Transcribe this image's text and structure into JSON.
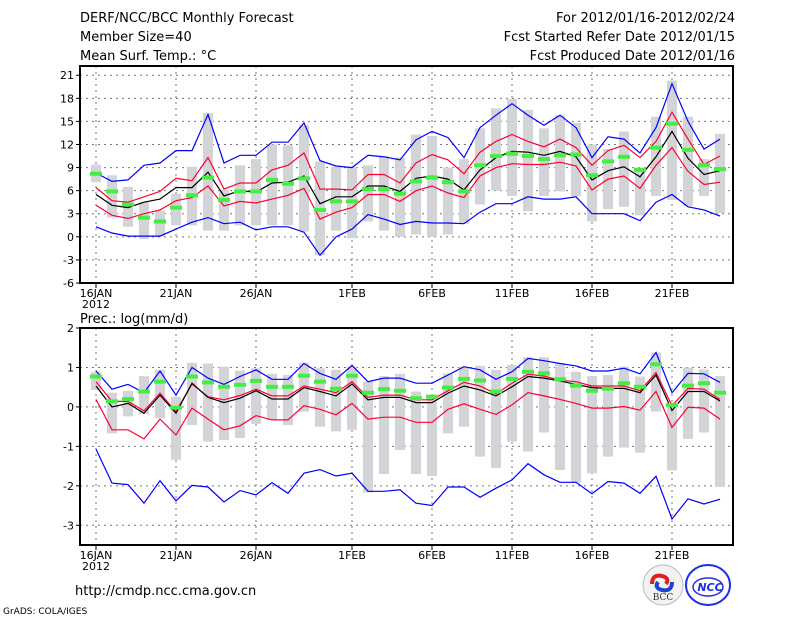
{
  "header": {
    "title": "DERF/NCC/BCC Monthly Forecast",
    "member_size": "Member Size=40",
    "variable": "Mean Surf. Temp.: °C",
    "period": "For 2012/01/16-2012/02/24",
    "refer_date": "Fcst Started Refer Date 2012/01/15",
    "produced_date": "Fcst Produced Date 2012/01/16"
  },
  "footer": {
    "url": "http://cmdp.ncc.cma.gov.cn",
    "credit": "GrADS: COLA/IGES",
    "logos": [
      "BCC",
      "NCC"
    ]
  },
  "colors": {
    "max_min": "#0000ff",
    "spread": "#ff0033",
    "mean": "#000000",
    "climate": "#44ee44",
    "range_bar": "#d3d4d8",
    "grid": "#777777"
  },
  "chart_data": [
    {
      "type": "line",
      "title": "Mean Surf. Temp.: °C",
      "xlabel": "",
      "ylabel": "°C",
      "x_start": "2012-01-16",
      "days": 40,
      "x_ticks": [
        {
          "day": 0,
          "label": "16JAN",
          "sub": "2012"
        },
        {
          "day": 5,
          "label": "21JAN"
        },
        {
          "day": 10,
          "label": "26JAN"
        },
        {
          "day": 16,
          "label": "1FEB"
        },
        {
          "day": 21,
          "label": "6FEB"
        },
        {
          "day": 26,
          "label": "11FEB"
        },
        {
          "day": 31,
          "label": "16FEB"
        },
        {
          "day": 36,
          "label": "21FEB"
        }
      ],
      "y_ticks": [
        "21",
        "18",
        "15",
        "12",
        "9",
        "6",
        "3",
        "0",
        "-3",
        "-6"
      ],
      "ylim": [
        -6,
        22.2
      ],
      "grid": true,
      "series": [
        {
          "name": "ensemble max",
          "color": "blue",
          "values": [
            8.3,
            7.2,
            7.4,
            9.3,
            9.6,
            11.2,
            11.2,
            15.9,
            9.6,
            10.6,
            10.6,
            12.3,
            12.3,
            14.8,
            9.9,
            9.2,
            9.0,
            10.6,
            10.4,
            10.0,
            12.6,
            13.7,
            12.9,
            10.3,
            14.2,
            15.8,
            17.3,
            15.8,
            14.5,
            15.8,
            14.2,
            10.3,
            13.0,
            12.7,
            10.9,
            14.2,
            19.9,
            15.0,
            11.4,
            12.7
          ]
        },
        {
          "name": "ensemble upper",
          "color": "red",
          "values": [
            6.4,
            4.7,
            4.5,
            5.2,
            5.9,
            7.6,
            7.3,
            10.3,
            6.2,
            7.0,
            7.0,
            8.7,
            9.3,
            10.9,
            6.2,
            6.2,
            6.1,
            8.1,
            8.1,
            7.0,
            9.6,
            10.7,
            10.0,
            8.2,
            11.0,
            12.4,
            13.3,
            12.4,
            11.7,
            12.7,
            11.6,
            9.3,
            11.2,
            11.9,
            10.3,
            12.4,
            16.2,
            12.7,
            9.4,
            10.5
          ]
        },
        {
          "name": "ensemble mean",
          "color": "black",
          "values": [
            5.5,
            4.1,
            3.8,
            4.5,
            4.9,
            6.4,
            6.4,
            8.4,
            5.3,
            6.0,
            5.8,
            7.0,
            7.1,
            7.9,
            4.3,
            5.2,
            5.2,
            6.6,
            6.6,
            5.9,
            7.6,
            7.9,
            7.5,
            6.1,
            8.7,
            10.3,
            11.1,
            11.0,
            10.6,
            11.1,
            10.4,
            7.4,
            8.6,
            9.1,
            7.8,
            10.4,
            13.7,
            10.2,
            8.1,
            8.6
          ]
        },
        {
          "name": "ensemble lower",
          "color": "red",
          "values": [
            4.1,
            2.8,
            2.4,
            3.0,
            3.5,
            4.7,
            5.1,
            6.6,
            4.0,
            4.6,
            4.4,
            4.9,
            5.4,
            6.3,
            2.3,
            3.2,
            3.8,
            5.5,
            5.5,
            4.6,
            6.0,
            6.6,
            5.7,
            5.1,
            7.9,
            9.0,
            9.5,
            9.4,
            9.4,
            9.7,
            9.2,
            6.1,
            7.5,
            7.9,
            6.3,
            9.3,
            11.6,
            8.5,
            6.8,
            7.1
          ]
        },
        {
          "name": "ensemble min",
          "color": "blue",
          "values": [
            1.3,
            0.5,
            0.1,
            0.1,
            0.1,
            1.0,
            1.9,
            2.5,
            1.7,
            1.9,
            0.9,
            1.3,
            1.3,
            0.6,
            -2.4,
            0.0,
            1.0,
            2.9,
            2.3,
            1.6,
            2.0,
            1.8,
            1.8,
            1.7,
            3.2,
            4.3,
            4.3,
            5.2,
            4.9,
            4.9,
            5.2,
            3.0,
            3.0,
            3.0,
            2.1,
            4.5,
            5.5,
            3.9,
            3.5,
            2.7
          ]
        },
        {
          "name": "climate",
          "color": "green",
          "values": [
            8.2,
            5.9,
            4.2,
            2.5,
            2.0,
            3.8,
            5.4,
            7.7,
            4.8,
            5.9,
            5.9,
            7.4,
            6.9,
            7.6,
            3.5,
            4.6,
            4.6,
            6.2,
            6.2,
            5.6,
            7.2,
            7.7,
            7.1,
            5.9,
            9.3,
            10.5,
            10.8,
            10.5,
            10.1,
            10.6,
            10.7,
            8.0,
            9.8,
            10.4,
            8.7,
            11.6,
            14.7,
            11.3,
            9.3,
            8.8
          ]
        }
      ],
      "range_bars": {
        "high": [
          9.4,
          8.0,
          6.5,
          4.5,
          3.4,
          5.6,
          9.1,
          16.1,
          6.1,
          9.3,
          10.1,
          12.0,
          11.9,
          14.5,
          9.8,
          9.1,
          9.1,
          9.3,
          10.5,
          10.3,
          13.3,
          13.1,
          9.0,
          10.1,
          14.1,
          16.7,
          17.9,
          16.5,
          14.1,
          15.8,
          14.8,
          12.0,
          11.4,
          13.7,
          9.0,
          15.6,
          20.3,
          15.6,
          10.1,
          13.4
        ],
        "low": [
          7.1,
          2.5,
          1.3,
          -0.3,
          0.1,
          1.5,
          1.5,
          0.8,
          0.8,
          1.5,
          1.5,
          1.5,
          1.5,
          0.7,
          -2.4,
          0.8,
          -0.2,
          2.0,
          0.8,
          0.0,
          0.3,
          0.0,
          0.3,
          1.7,
          4.2,
          6.0,
          5.3,
          3.3,
          5.3,
          5.9,
          5.3,
          2.0,
          3.6,
          3.9,
          2.8,
          5.3,
          4.8,
          4.0,
          5.3,
          3.1
        ]
      }
    },
    {
      "type": "line",
      "title": "Prec.: log(mm/d)",
      "xlabel": "",
      "ylabel": "log(mm/d)",
      "x_start": "2012-01-16",
      "days": 40,
      "x_ticks": [
        {
          "day": 0,
          "label": "16JAN",
          "sub": "2012"
        },
        {
          "day": 5,
          "label": "21JAN"
        },
        {
          "day": 10,
          "label": "26JAN"
        },
        {
          "day": 16,
          "label": "1FEB"
        },
        {
          "day": 21,
          "label": "6FEB"
        },
        {
          "day": 26,
          "label": "11FEB"
        },
        {
          "day": 31,
          "label": "16FEB"
        },
        {
          "day": 36,
          "label": "21FEB"
        }
      ],
      "y_ticks": [
        "2",
        "1",
        "0",
        "-1",
        "-2",
        "-3"
      ],
      "ylim": [
        -3.5,
        2
      ],
      "grid": true,
      "series": [
        {
          "name": "ensemble max",
          "color": "blue",
          "values": [
            0.91,
            0.45,
            0.57,
            0.36,
            0.91,
            0.3,
            1.0,
            0.73,
            0.57,
            0.77,
            0.94,
            0.7,
            0.7,
            1.1,
            0.85,
            0.7,
            1.05,
            0.64,
            0.73,
            0.73,
            0.6,
            0.6,
            0.81,
            1.02,
            0.94,
            0.7,
            0.89,
            1.23,
            1.17,
            1.1,
            1.04,
            0.91,
            0.91,
            0.98,
            0.84,
            1.38,
            0.36,
            0.85,
            0.84,
            0.62
          ]
        },
        {
          "name": "ensemble upper",
          "color": "red",
          "values": [
            0.64,
            0.14,
            0.14,
            -0.1,
            0.35,
            -0.12,
            0.58,
            0.26,
            0.18,
            0.29,
            0.45,
            0.28,
            0.28,
            0.53,
            0.45,
            0.36,
            0.64,
            0.24,
            0.3,
            0.3,
            0.18,
            0.18,
            0.41,
            0.62,
            0.53,
            0.33,
            0.6,
            0.83,
            0.78,
            0.68,
            0.64,
            0.53,
            0.53,
            0.53,
            0.41,
            0.87,
            0.03,
            0.47,
            0.45,
            0.19
          ]
        },
        {
          "name": "ensemble mean",
          "color": "black",
          "values": [
            0.53,
            0.0,
            0.09,
            -0.16,
            0.3,
            -0.16,
            0.6,
            0.24,
            0.11,
            0.22,
            0.41,
            0.2,
            0.2,
            0.49,
            0.39,
            0.28,
            0.58,
            0.18,
            0.24,
            0.24,
            0.11,
            0.11,
            0.35,
            0.53,
            0.43,
            0.28,
            0.51,
            0.77,
            0.73,
            0.66,
            0.57,
            0.49,
            0.47,
            0.47,
            0.36,
            0.81,
            -0.09,
            0.39,
            0.39,
            0.15
          ]
        },
        {
          "name": "ensemble lower",
          "color": "red",
          "values": [
            0.19,
            -0.58,
            -0.58,
            -0.81,
            -0.31,
            -0.71,
            -0.03,
            -0.31,
            -0.58,
            -0.48,
            -0.22,
            -0.33,
            -0.33,
            0.03,
            -0.06,
            -0.2,
            0.09,
            -0.31,
            -0.26,
            -0.26,
            -0.39,
            -0.39,
            -0.06,
            0.08,
            -0.06,
            -0.19,
            0.05,
            0.36,
            0.28,
            0.19,
            0.09,
            -0.03,
            -0.03,
            0.01,
            -0.08,
            0.39,
            -0.52,
            -0.01,
            -0.03,
            -0.31
          ]
        },
        {
          "name": "ensemble min",
          "color": "blue",
          "values": [
            -1.07,
            -1.93,
            -1.97,
            -2.44,
            -1.87,
            -2.38,
            -1.99,
            -2.03,
            -2.41,
            -2.12,
            -2.23,
            -1.92,
            -2.19,
            -1.68,
            -1.59,
            -1.75,
            -1.68,
            -2.14,
            -2.14,
            -2.1,
            -2.44,
            -2.5,
            -2.03,
            -2.03,
            -2.29,
            -2.06,
            -1.85,
            -1.44,
            -1.72,
            -1.91,
            -1.91,
            -2.2,
            -1.89,
            -1.93,
            -2.19,
            -1.76,
            -2.84,
            -2.33,
            -2.46,
            -2.34
          ]
        },
        {
          "name": "climate",
          "color": "green",
          "values": [
            0.77,
            0.14,
            0.2,
            0.39,
            0.64,
            -0.02,
            0.77,
            0.62,
            0.51,
            0.56,
            0.66,
            0.51,
            0.51,
            0.79,
            0.64,
            0.46,
            0.79,
            0.36,
            0.45,
            0.41,
            0.22,
            0.26,
            0.49,
            0.71,
            0.67,
            0.39,
            0.71,
            0.89,
            0.85,
            0.7,
            0.54,
            0.41,
            0.46,
            0.6,
            0.51,
            1.08,
            0.05,
            0.54,
            0.6,
            0.36
          ]
        }
      ],
      "range_bars": {
        "high": [
          0.89,
          0.36,
          0.41,
          0.78,
          0.94,
          0.26,
          1.12,
          1.1,
          1.02,
          0.92,
          0.98,
          0.84,
          0.81,
          1.12,
          0.98,
          0.94,
          1.02,
          0.64,
          0.78,
          0.84,
          0.39,
          0.3,
          0.85,
          1.02,
          1.04,
          0.94,
          1.06,
          1.26,
          1.26,
          1.1,
          0.89,
          0.78,
          0.81,
          1.02,
          0.77,
          1.38,
          0.09,
          1.0,
          0.95,
          0.78
        ],
        "low": [
          0.43,
          -0.67,
          -0.24,
          -0.18,
          -0.29,
          -1.34,
          -0.46,
          -0.88,
          -0.84,
          -0.79,
          -0.43,
          -0.33,
          -0.46,
          -0.12,
          -0.5,
          -0.62,
          -0.58,
          -2.17,
          -1.7,
          -1.09,
          -1.7,
          -1.75,
          -0.67,
          -0.5,
          -1.26,
          -1.55,
          -0.88,
          -1.13,
          -0.65,
          -1.6,
          -1.93,
          -1.68,
          -1.26,
          -1.03,
          -1.16,
          -0.12,
          -1.61,
          -0.81,
          -0.65,
          -2.03
        ]
      }
    }
  ]
}
